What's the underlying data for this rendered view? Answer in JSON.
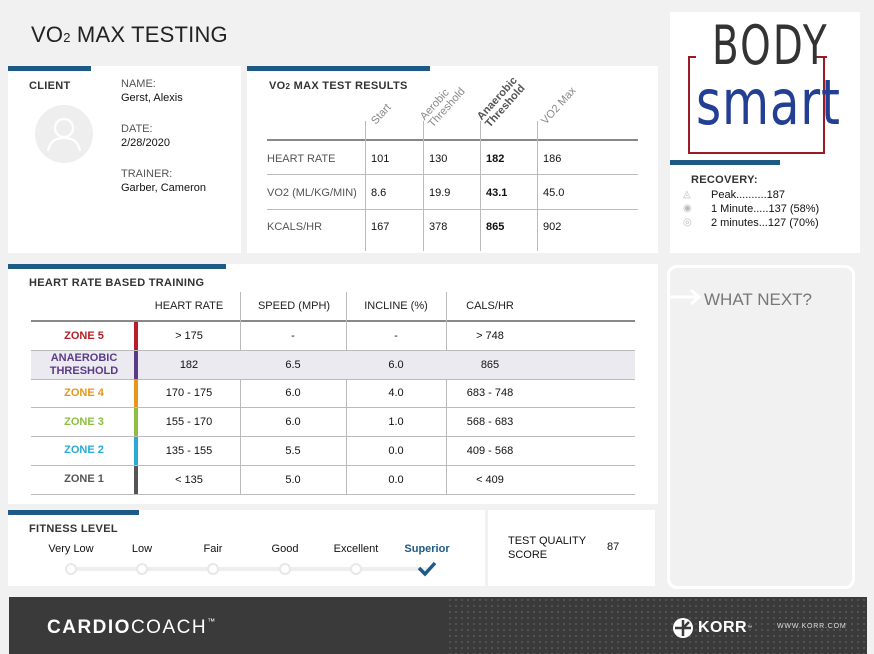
{
  "page": {
    "title_prefix": "VO",
    "title_sub": "2",
    "title_suffix": " MAX TESTING"
  },
  "client": {
    "header": "CLIENT",
    "name_label": "NAME:",
    "name": "Gerst, Alexis",
    "date_label": "DATE:",
    "date": "2/28/2020",
    "trainer_label": "TRAINER:",
    "trainer": "Garber, Cameron"
  },
  "results": {
    "header_prefix": "VO",
    "header_sub": "2",
    "header_suffix": " MAX TEST RESULTS",
    "columns": [
      "Start",
      "Aerobic Threshold",
      "Anaerobic Threshold",
      "VO2 Max"
    ],
    "columns_split": [
      [
        "Start"
      ],
      [
        "Aerobic",
        "Threshold"
      ],
      [
        "Anaerobic",
        "Threshold"
      ],
      [
        "VO2 Max"
      ]
    ],
    "rows": [
      {
        "label": "HEART RATE",
        "values": [
          "101",
          "130",
          "182",
          "186"
        ]
      },
      {
        "label": "VO2 (ML/KG/MIN)",
        "values": [
          "8.6",
          "19.9",
          "43.1",
          "45.0"
        ]
      },
      {
        "label": "KCALS/HR",
        "values": [
          "167",
          "378",
          "865",
          "902"
        ]
      }
    ]
  },
  "logo": {
    "line1": "BODY",
    "line2": "smart"
  },
  "recovery": {
    "header": "RECOVERY:",
    "items": [
      "Peak..........187",
      "1 Minute.....137 (58%)",
      "2 minutes...127 (70%)"
    ]
  },
  "training": {
    "header": "HEART RATE BASED TRAINING",
    "columns": [
      "HEART RATE",
      "SPEED (MPH)",
      "INCLINE (%)",
      "CALS/HR"
    ],
    "zones": [
      {
        "name": "ZONE 5",
        "color": "#b5202a",
        "hr": "> 175",
        "speed": "-",
        "incline": "-",
        "cals": "> 748",
        "highlight": false
      },
      {
        "name": "ANAEROBIC THRESHOLD",
        "color": "#5a3b86",
        "hr": "182",
        "speed": "6.5",
        "incline": "6.0",
        "cals": "865",
        "highlight": true
      },
      {
        "name": "ZONE 4",
        "color": "#e8961a",
        "hr": "170 - 175",
        "speed": "6.0",
        "incline": "4.0",
        "cals": "683 - 748",
        "highlight": false
      },
      {
        "name": "ZONE 3",
        "color": "#8cbf3f",
        "hr": "155 - 170",
        "speed": "6.0",
        "incline": "1.0",
        "cals": "568 - 683",
        "highlight": false
      },
      {
        "name": "ZONE 2",
        "color": "#2aaad8",
        "hr": "135 - 155",
        "speed": "5.5",
        "incline": "0.0",
        "cals": "409 - 568",
        "highlight": false
      },
      {
        "name": "ZONE 1",
        "color": "#555555",
        "hr": "< 135",
        "speed": "5.0",
        "incline": "0.0",
        "cals": "< 409",
        "highlight": false
      }
    ]
  },
  "fitness": {
    "header": "FITNESS LEVEL",
    "levels": [
      "Very Low",
      "Low",
      "Fair",
      "Good",
      "Excellent",
      "Superior"
    ],
    "selected": "Superior"
  },
  "quality": {
    "label": "TEST QUALITY SCORE",
    "value": "87"
  },
  "whatnext": {
    "label": "WHAT NEXT?"
  },
  "footer": {
    "brand_bold": "CARDIO",
    "brand_light": "COACH",
    "brand_tm": "™",
    "partner": "KORR",
    "partner_tm": "™",
    "url": "WWW.KORR.COM"
  },
  "colors": {
    "accent": "#1e5a86",
    "logo_red": "#9a1b24",
    "logo_blue": "#233f94"
  }
}
